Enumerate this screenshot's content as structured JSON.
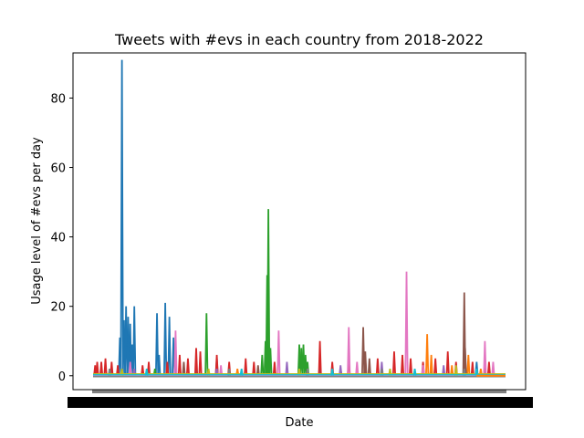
{
  "chart_data": {
    "type": "line",
    "title": "Tweets with #evs in each country from 2018-2022",
    "xlabel": "Date",
    "ylabel": "Usage level of #evs per day",
    "ylim": [
      -4,
      93
    ],
    "yticks": [
      0,
      20,
      40,
      60,
      80
    ],
    "x_ticks_note": "x tick labels are dense date strings that overlap into an unreadable black band",
    "grid": false,
    "legend": "none",
    "series": [
      {
        "color": "#1f77b4",
        "spikes": [
          [
            0.07,
            91
          ],
          [
            0.065,
            11
          ],
          [
            0.075,
            16
          ],
          [
            0.08,
            20
          ],
          [
            0.085,
            17
          ],
          [
            0.09,
            15
          ],
          [
            0.1,
            20
          ],
          [
            0.085,
            12
          ],
          [
            0.095,
            9
          ],
          [
            0.155,
            18
          ],
          [
            0.175,
            21
          ],
          [
            0.185,
            17
          ],
          [
            0.195,
            11
          ],
          [
            0.16,
            6
          ],
          [
            0.2,
            4
          ],
          [
            0.25,
            3
          ],
          [
            0.3,
            5
          ],
          [
            0.55,
            4
          ],
          [
            0.66,
            4
          ],
          [
            0.82,
            3
          ],
          [
            0.93,
            4
          ]
        ]
      },
      {
        "color": "#ff7f0e",
        "spikes": [
          [
            0.12,
            2
          ],
          [
            0.35,
            2
          ],
          [
            0.6,
            2
          ],
          [
            0.81,
            12
          ],
          [
            0.82,
            6
          ],
          [
            0.87,
            3
          ],
          [
            0.91,
            6
          ],
          [
            0.94,
            2
          ]
        ]
      },
      {
        "color": "#2ca02c",
        "spikes": [
          [
            0.275,
            18
          ],
          [
            0.425,
            48
          ],
          [
            0.422,
            29
          ],
          [
            0.418,
            10
          ],
          [
            0.41,
            6
          ],
          [
            0.43,
            8
          ],
          [
            0.5,
            9
          ],
          [
            0.505,
            8
          ],
          [
            0.51,
            9
          ],
          [
            0.515,
            6
          ],
          [
            0.52,
            4
          ],
          [
            0.9,
            7
          ],
          [
            0.15,
            2
          ],
          [
            0.6,
            2
          ]
        ]
      },
      {
        "color": "#d62728",
        "spikes": [
          [
            0.005,
            3
          ],
          [
            0.01,
            4
          ],
          [
            0.02,
            4
          ],
          [
            0.03,
            5
          ],
          [
            0.045,
            4
          ],
          [
            0.06,
            3
          ],
          [
            0.12,
            3
          ],
          [
            0.135,
            4
          ],
          [
            0.18,
            4
          ],
          [
            0.21,
            6
          ],
          [
            0.23,
            5
          ],
          [
            0.25,
            8
          ],
          [
            0.26,
            7
          ],
          [
            0.3,
            6
          ],
          [
            0.33,
            4
          ],
          [
            0.37,
            5
          ],
          [
            0.39,
            4
          ],
          [
            0.44,
            4
          ],
          [
            0.55,
            10
          ],
          [
            0.58,
            4
          ],
          [
            0.62,
            6
          ],
          [
            0.66,
            5
          ],
          [
            0.69,
            5
          ],
          [
            0.73,
            7
          ],
          [
            0.75,
            6
          ],
          [
            0.77,
            5
          ],
          [
            0.8,
            4
          ],
          [
            0.83,
            5
          ],
          [
            0.86,
            7
          ],
          [
            0.88,
            4
          ],
          [
            0.92,
            4
          ],
          [
            0.96,
            4
          ]
        ]
      },
      {
        "color": "#9467bd",
        "spikes": [
          [
            0.1,
            2
          ],
          [
            0.2,
            3
          ],
          [
            0.3,
            2
          ],
          [
            0.47,
            4
          ],
          [
            0.6,
            3
          ],
          [
            0.7,
            4
          ],
          [
            0.85,
            3
          ]
        ]
      },
      {
        "color": "#8c564b",
        "spikes": [
          [
            0.22,
            4
          ],
          [
            0.4,
            3
          ],
          [
            0.655,
            14
          ],
          [
            0.66,
            7
          ],
          [
            0.67,
            5
          ],
          [
            0.9,
            24
          ],
          [
            0.902,
            8
          ],
          [
            0.95,
            3
          ]
        ]
      },
      {
        "color": "#e377c2",
        "spikes": [
          [
            0.09,
            4
          ],
          [
            0.2,
            13
          ],
          [
            0.31,
            3
          ],
          [
            0.45,
            13
          ],
          [
            0.62,
            14
          ],
          [
            0.64,
            4
          ],
          [
            0.76,
            30
          ],
          [
            0.8,
            3
          ],
          [
            0.95,
            10
          ],
          [
            0.97,
            4
          ]
        ]
      },
      {
        "color": "#7f7f7f",
        "spikes": [
          [
            0.04,
            2
          ],
          [
            0.33,
            2
          ],
          [
            0.52,
            2
          ],
          [
            0.7,
            2
          ],
          [
            0.9,
            2
          ]
        ]
      },
      {
        "color": "#bcbd22",
        "spikes": [
          [
            0.07,
            2
          ],
          [
            0.28,
            2
          ],
          [
            0.5,
            2
          ],
          [
            0.72,
            2
          ],
          [
            0.88,
            3
          ]
        ]
      },
      {
        "color": "#17becf",
        "spikes": [
          [
            0.13,
            2
          ],
          [
            0.36,
            2
          ],
          [
            0.58,
            2
          ],
          [
            0.78,
            2
          ],
          [
            0.93,
            2
          ]
        ]
      }
    ]
  }
}
